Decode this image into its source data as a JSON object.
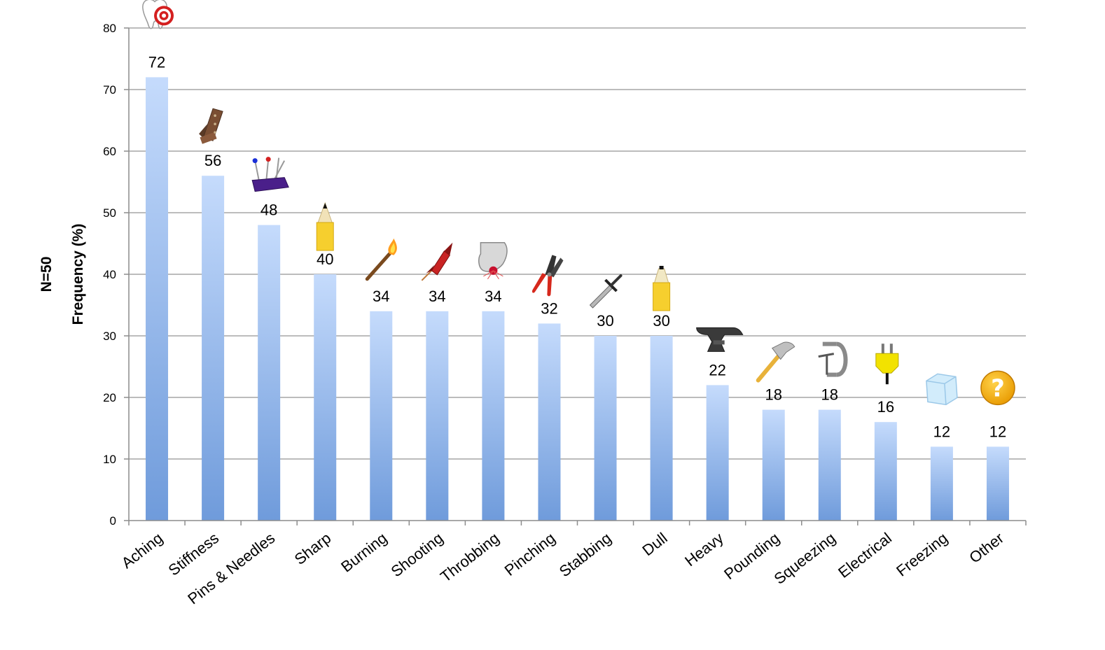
{
  "chart_data": {
    "type": "bar",
    "title": "",
    "xlabel": "",
    "ylabel": "Frequency (%)",
    "ylabel_prefix": "N=50",
    "ylim": [
      0,
      80
    ],
    "yticks": [
      0,
      10,
      20,
      30,
      40,
      50,
      60,
      70,
      80
    ],
    "grid": true,
    "legend": "none",
    "categories": [
      "Aching",
      "Stiffness",
      "Pins & Needles",
      "Sharp",
      "Burning",
      "Shooting",
      "Throbbing",
      "Pinching",
      "Stabbing",
      "Dull",
      "Heavy",
      "Pounding",
      "Squeezing",
      "Electrical",
      "Freezing",
      "Other"
    ],
    "values": [
      72,
      56,
      48,
      40,
      34,
      34,
      34,
      32,
      30,
      30,
      22,
      18,
      18,
      16,
      12,
      12
    ],
    "icons": [
      "tooth-target-icon",
      "hinge-icon",
      "pin-cushion-icon",
      "pencil-sharp-icon",
      "match-flame-icon",
      "firework-rocket-icon",
      "throbbing-toe-icon",
      "pliers-icon",
      "dagger-icon",
      "pencil-dull-icon",
      "anvil-icon",
      "hammer-icon",
      "c-clamp-icon",
      "electric-plug-icon",
      "ice-cube-icon",
      "question-mark-icon"
    ],
    "colors": {
      "bar_top": "#c5dbfc",
      "bar_bottom": "#6f9bdb",
      "grid": "#a6a6a6",
      "axis": "#8c8c8c"
    }
  }
}
